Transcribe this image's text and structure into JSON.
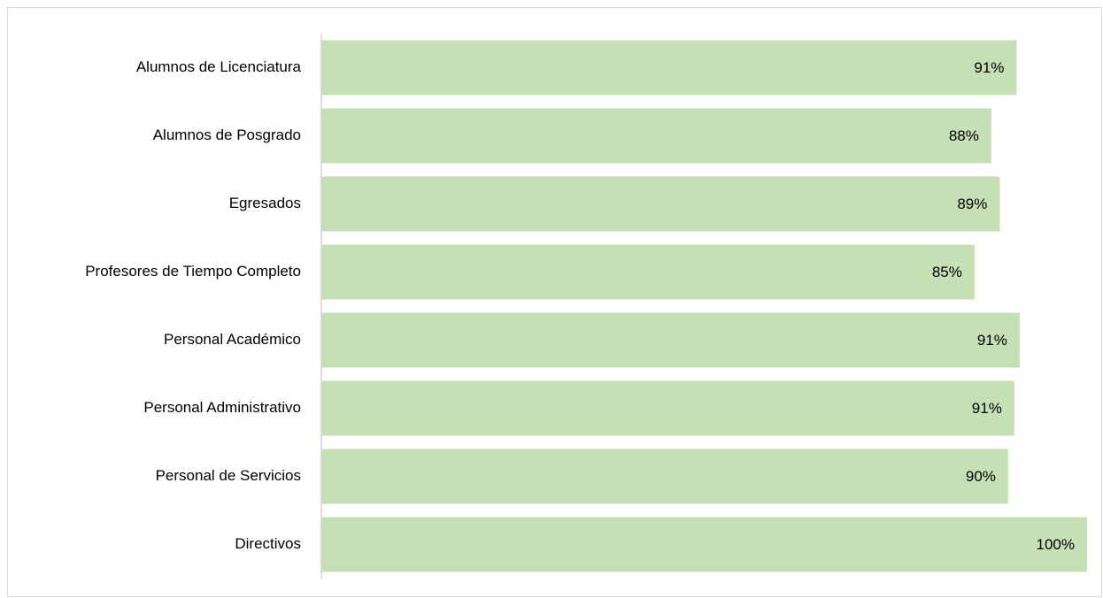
{
  "chart_data": {
    "type": "barh",
    "categories": [
      "Alumnos de Licenciatura",
      "Alumnos de Posgrado",
      "Egresados",
      "Profesores de Tiempo Completo",
      "Personal Académico",
      "Personal Administrativo",
      "Personal de Servicios",
      "Directivos"
    ],
    "values": [
      90.8,
      87.5,
      88.6,
      85.3,
      91.2,
      90.5,
      89.7,
      100
    ],
    "value_labels": [
      "91%",
      "88%",
      "89%",
      "85%",
      "91%",
      "91%",
      "90%",
      "100%"
    ],
    "color": "#c5e0b4",
    "xlim": [
      0,
      100
    ]
  }
}
